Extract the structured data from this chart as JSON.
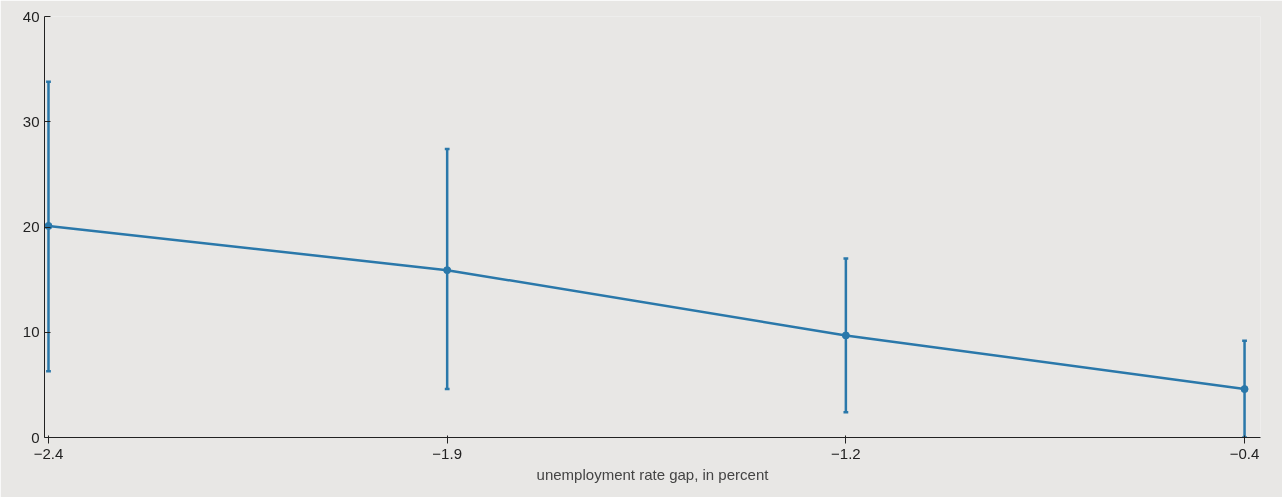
{
  "chart_data": {
    "type": "line",
    "xlabel": "unemployment rate gap, in percent",
    "categories": [
      "−2.4",
      "−1.9",
      "−1.2",
      "−0.4"
    ],
    "series": [
      {
        "color": "#2a78aa",
        "values": [
          20.1,
          15.9,
          9.7,
          4.6
        ],
        "errors": [
          [
            6.3,
            33.8
          ],
          [
            4.6,
            27.4
          ],
          [
            2.4,
            17.0
          ],
          [
            0,
            9.2
          ]
        ]
      }
    ],
    "ylim": [
      0,
      40
    ],
    "yticks": [
      0,
      10,
      20,
      30,
      40
    ],
    "marker": "circle",
    "line_style": "solid"
  }
}
